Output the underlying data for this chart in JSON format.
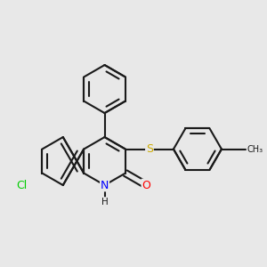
{
  "background_color": "#e8e8e8",
  "bond_color": "#1a1a1a",
  "atom_colors": {
    "N": "#0000ff",
    "O": "#ff0000",
    "S": "#ccaa00",
    "Cl": "#00cc00",
    "C": "#1a1a1a",
    "H": "#1a1a1a"
  },
  "bond_width": 1.5,
  "font_size": 8,
  "figsize": [
    3.0,
    3.0
  ],
  "dpi": 100
}
